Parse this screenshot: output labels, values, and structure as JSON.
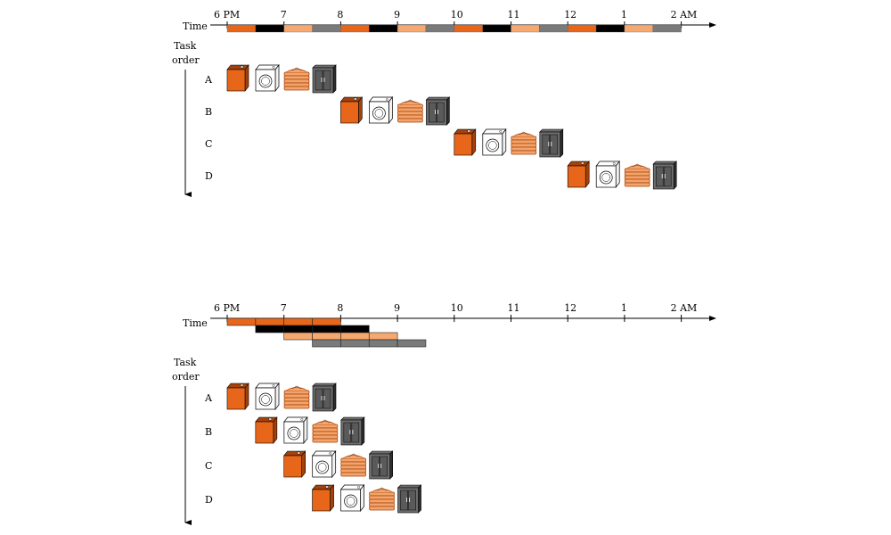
{
  "colors": {
    "washer": "#e8661a",
    "washer_dark": "#a4420b",
    "dryer": "#ffffff",
    "folder": "#f4a46a",
    "folder_dark": "#a4420b",
    "closet": "#6d6d6d",
    "closet_dark": "#2e2e2e",
    "stage_wash": "#e8661a",
    "stage_dry": "#000000",
    "stage_fold": "#f6a86e",
    "stage_store": "#7a7a7a"
  },
  "stage_icons": [
    "washer-icon",
    "dryer-icon",
    "folded-clothes-icon",
    "closet-icon"
  ],
  "sequential": {
    "time_label": "Time",
    "task_order_label_1": "Task",
    "task_order_label_2": "order",
    "ticks": [
      "6 PM",
      "7",
      "8",
      "9",
      "10",
      "11",
      "12",
      "1",
      "2 AM"
    ],
    "stage_minutes": 30,
    "loads": [
      {
        "label": "A",
        "start_stage": 0
      },
      {
        "label": "B",
        "start_stage": 4
      },
      {
        "label": "C",
        "start_stage": 8
      },
      {
        "label": "D",
        "start_stage": 12
      }
    ]
  },
  "pipelined": {
    "time_label": "Time",
    "task_order_label_1": "Task",
    "task_order_label_2": "order",
    "ticks": [
      "6 PM",
      "7",
      "8",
      "9",
      "10",
      "11",
      "12",
      "1",
      "2 AM"
    ],
    "stage_minutes": 30,
    "loads": [
      {
        "label": "A",
        "start_stage": 0
      },
      {
        "label": "B",
        "start_stage": 1
      },
      {
        "label": "C",
        "start_stage": 2
      },
      {
        "label": "D",
        "start_stage": 3
      }
    ]
  }
}
